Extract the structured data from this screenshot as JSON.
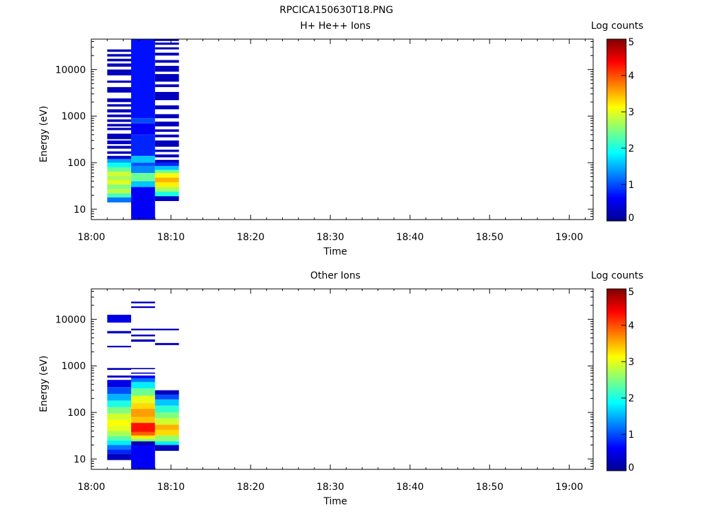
{
  "figure_title": "RPCICA150630T18.PNG",
  "chart_data": [
    {
      "type": "heatmap",
      "title": "H+ He++ Ions",
      "xlabel": "Time",
      "ylabel": "Energy (eV)",
      "x_ticks": [
        "18:00",
        "18:10",
        "18:20",
        "18:30",
        "18:40",
        "18:50",
        "19:00"
      ],
      "x_range": [
        "18:00",
        "19:03"
      ],
      "y_scale": "log",
      "y_ticks": [
        10,
        100,
        1000,
        10000
      ],
      "y_tick_labels": [
        "10",
        "100",
        "1000",
        "10000"
      ],
      "y_range": [
        6,
        45000
      ],
      "colorbar": {
        "label": "Log counts",
        "range": [
          0,
          5
        ],
        "ticks": [
          "0",
          "1",
          "2",
          "3",
          "4",
          "5"
        ]
      },
      "columns": [
        {
          "start": "18:02",
          "end": "18:05",
          "bins": [
            {
              "e_lo": 14,
              "e_hi": 18,
              "log_counts": 1.2
            },
            {
              "e_lo": 18,
              "e_hi": 22,
              "log_counts": 2.2
            },
            {
              "e_lo": 22,
              "e_hi": 27,
              "log_counts": 2.8
            },
            {
              "e_lo": 27,
              "e_hi": 34,
              "log_counts": 2.5
            },
            {
              "e_lo": 34,
              "e_hi": 42,
              "log_counts": 3.0
            },
            {
              "e_lo": 42,
              "e_hi": 52,
              "log_counts": 2.7
            },
            {
              "e_lo": 52,
              "e_hi": 64,
              "log_counts": 2.9
            },
            {
              "e_lo": 64,
              "e_hi": 80,
              "log_counts": 2.4
            },
            {
              "e_lo": 80,
              "e_hi": 100,
              "log_counts": 1.9
            },
            {
              "e_lo": 100,
              "e_hi": 120,
              "log_counts": 1.4
            },
            {
              "e_lo": 120,
              "e_hi": 140,
              "log_counts": 0.4
            },
            {
              "e_lo": 155,
              "e_hi": 175,
              "log_counts": 0.3
            },
            {
              "e_lo": 200,
              "e_hi": 230,
              "log_counts": 0.3
            },
            {
              "e_lo": 250,
              "e_hi": 300,
              "log_counts": 0.4
            },
            {
              "e_lo": 320,
              "e_hi": 420,
              "log_counts": 0.3
            },
            {
              "e_lo": 500,
              "e_hi": 560,
              "log_counts": 0.3
            },
            {
              "e_lo": 600,
              "e_hi": 680,
              "log_counts": 0.3
            },
            {
              "e_lo": 750,
              "e_hi": 850,
              "log_counts": 0.3
            },
            {
              "e_lo": 950,
              "e_hi": 1080,
              "log_counts": 0.3
            },
            {
              "e_lo": 1200,
              "e_hi": 1400,
              "log_counts": 0.3
            },
            {
              "e_lo": 1600,
              "e_hi": 1800,
              "log_counts": 0.3
            },
            {
              "e_lo": 2000,
              "e_hi": 2400,
              "log_counts": 0.3
            },
            {
              "e_lo": 3200,
              "e_hi": 4200,
              "log_counts": 0.3
            },
            {
              "e_lo": 5200,
              "e_hi": 5800,
              "log_counts": 0.3
            },
            {
              "e_lo": 7500,
              "e_hi": 10000,
              "log_counts": 0.3
            },
            {
              "e_lo": 11500,
              "e_hi": 13500,
              "log_counts": 0.3
            },
            {
              "e_lo": 15000,
              "e_hi": 17000,
              "log_counts": 0.3
            },
            {
              "e_lo": 19000,
              "e_hi": 21500,
              "log_counts": 0.3
            },
            {
              "e_lo": 24000,
              "e_hi": 27000,
              "log_counts": 0.3
            }
          ]
        },
        {
          "start": "18:05",
          "end": "18:08",
          "bins": [
            {
              "e_lo": 6,
              "e_hi": 30,
              "log_counts": 0.6
            },
            {
              "e_lo": 30,
              "e_hi": 40,
              "log_counts": 1.6
            },
            {
              "e_lo": 40,
              "e_hi": 60,
              "log_counts": 2.4
            },
            {
              "e_lo": 60,
              "e_hi": 85,
              "log_counts": 1.3
            },
            {
              "e_lo": 85,
              "e_hi": 100,
              "log_counts": 1.0
            },
            {
              "e_lo": 100,
              "e_hi": 140,
              "log_counts": 1.6
            },
            {
              "e_lo": 140,
              "e_hi": 400,
              "log_counts": 0.8
            },
            {
              "e_lo": 400,
              "e_hi": 700,
              "log_counts": 0.6
            },
            {
              "e_lo": 700,
              "e_hi": 900,
              "log_counts": 1.0
            },
            {
              "e_lo": 900,
              "e_hi": 45000,
              "log_counts": 0.7
            }
          ]
        },
        {
          "start": "18:08",
          "end": "18:11",
          "bins": [
            {
              "e_lo": 15,
              "e_hi": 19,
              "log_counts": 0.3
            },
            {
              "e_lo": 19,
              "e_hi": 24,
              "log_counts": 2.0
            },
            {
              "e_lo": 24,
              "e_hi": 30,
              "log_counts": 2.7
            },
            {
              "e_lo": 30,
              "e_hi": 38,
              "log_counts": 3.2
            },
            {
              "e_lo": 38,
              "e_hi": 48,
              "log_counts": 3.5
            },
            {
              "e_lo": 48,
              "e_hi": 60,
              "log_counts": 3.1
            },
            {
              "e_lo": 60,
              "e_hi": 70,
              "log_counts": 2.4
            },
            {
              "e_lo": 70,
              "e_hi": 85,
              "log_counts": 1.6
            },
            {
              "e_lo": 85,
              "e_hi": 100,
              "log_counts": 0.8
            },
            {
              "e_lo": 100,
              "e_hi": 115,
              "log_counts": 0.3
            },
            {
              "e_lo": 130,
              "e_hi": 150,
              "log_counts": 0.3
            },
            {
              "e_lo": 170,
              "e_hi": 190,
              "log_counts": 0.3
            },
            {
              "e_lo": 220,
              "e_hi": 300,
              "log_counts": 0.3
            },
            {
              "e_lo": 350,
              "e_hi": 400,
              "log_counts": 0.3
            },
            {
              "e_lo": 460,
              "e_hi": 520,
              "log_counts": 0.3
            },
            {
              "e_lo": 600,
              "e_hi": 760,
              "log_counts": 0.3
            },
            {
              "e_lo": 900,
              "e_hi": 1100,
              "log_counts": 0.3
            },
            {
              "e_lo": 1400,
              "e_hi": 1700,
              "log_counts": 0.3
            },
            {
              "e_lo": 2200,
              "e_hi": 3300,
              "log_counts": 0.3
            },
            {
              "e_lo": 4200,
              "e_hi": 4800,
              "log_counts": 0.3
            },
            {
              "e_lo": 5500,
              "e_hi": 8000,
              "log_counts": 0.3
            },
            {
              "e_lo": 9000,
              "e_hi": 12000,
              "log_counts": 0.3
            },
            {
              "e_lo": 14000,
              "e_hi": 16000,
              "log_counts": 0.3
            },
            {
              "e_lo": 20000,
              "e_hi": 23000,
              "log_counts": 0.3
            },
            {
              "e_lo": 27000,
              "e_hi": 30000,
              "log_counts": 0.3
            },
            {
              "e_lo": 34000,
              "e_hi": 38000,
              "log_counts": 0.3
            },
            {
              "e_lo": 41000,
              "e_hi": 45000,
              "log_counts": 0.3
            }
          ]
        }
      ]
    },
    {
      "type": "heatmap",
      "title": "Other Ions",
      "xlabel": "Time",
      "ylabel": "Energy (eV)",
      "x_ticks": [
        "18:00",
        "18:10",
        "18:20",
        "18:30",
        "18:40",
        "18:50",
        "19:00"
      ],
      "x_range": [
        "18:00",
        "19:03"
      ],
      "y_scale": "log",
      "y_ticks": [
        10,
        100,
        1000,
        10000
      ],
      "y_tick_labels": [
        "10",
        "100",
        "1000",
        "10000"
      ],
      "y_range": [
        6,
        45000
      ],
      "colorbar": {
        "label": "Log counts",
        "range": [
          0,
          5
        ],
        "ticks": [
          "0",
          "1",
          "2",
          "3",
          "4",
          "5"
        ]
      },
      "columns": [
        {
          "start": "18:02",
          "end": "18:05",
          "bins": [
            {
              "e_lo": 9.5,
              "e_hi": 13,
              "log_counts": 0.3
            },
            {
              "e_lo": 13,
              "e_hi": 16,
              "log_counts": 0.8
            },
            {
              "e_lo": 16,
              "e_hi": 20,
              "log_counts": 1.2
            },
            {
              "e_lo": 20,
              "e_hi": 25,
              "log_counts": 1.8
            },
            {
              "e_lo": 25,
              "e_hi": 31,
              "log_counts": 2.3
            },
            {
              "e_lo": 31,
              "e_hi": 40,
              "log_counts": 2.7
            },
            {
              "e_lo": 40,
              "e_hi": 52,
              "log_counts": 3.0
            },
            {
              "e_lo": 52,
              "e_hi": 70,
              "log_counts": 3.1
            },
            {
              "e_lo": 70,
              "e_hi": 95,
              "log_counts": 2.9
            },
            {
              "e_lo": 95,
              "e_hi": 130,
              "log_counts": 2.5
            },
            {
              "e_lo": 130,
              "e_hi": 180,
              "log_counts": 2.0
            },
            {
              "e_lo": 180,
              "e_hi": 250,
              "log_counts": 1.5
            },
            {
              "e_lo": 250,
              "e_hi": 350,
              "log_counts": 1.0
            },
            {
              "e_lo": 350,
              "e_hi": 500,
              "log_counts": 0.5
            },
            {
              "e_lo": 560,
              "e_hi": 620,
              "log_counts": 0.3
            },
            {
              "e_lo": 820,
              "e_hi": 900,
              "log_counts": 0.3
            },
            {
              "e_lo": 2500,
              "e_hi": 2700,
              "log_counts": 0.3
            },
            {
              "e_lo": 5000,
              "e_hi": 5600,
              "log_counts": 0.3
            },
            {
              "e_lo": 8500,
              "e_hi": 12500,
              "log_counts": 0.5
            }
          ]
        },
        {
          "start": "18:05",
          "end": "18:08",
          "bins": [
            {
              "e_lo": 6,
              "e_hi": 20,
              "log_counts": 0.6
            },
            {
              "e_lo": 20,
              "e_hi": 24,
              "log_counts": 0.2
            },
            {
              "e_lo": 24,
              "e_hi": 27,
              "log_counts": 2.5
            },
            {
              "e_lo": 27,
              "e_hi": 32,
              "log_counts": 3.2
            },
            {
              "e_lo": 32,
              "e_hi": 38,
              "log_counts": 3.9
            },
            {
              "e_lo": 38,
              "e_hi": 60,
              "log_counts": 4.3
            },
            {
              "e_lo": 60,
              "e_hi": 80,
              "log_counts": 3.4
            },
            {
              "e_lo": 80,
              "e_hi": 120,
              "log_counts": 3.6
            },
            {
              "e_lo": 120,
              "e_hi": 160,
              "log_counts": 3.3
            },
            {
              "e_lo": 160,
              "e_hi": 230,
              "log_counts": 3.0
            },
            {
              "e_lo": 230,
              "e_hi": 330,
              "log_counts": 2.4
            },
            {
              "e_lo": 330,
              "e_hi": 450,
              "log_counts": 1.8
            },
            {
              "e_lo": 450,
              "e_hi": 540,
              "log_counts": 1.2
            },
            {
              "e_lo": 540,
              "e_hi": 620,
              "log_counts": 0.6
            },
            {
              "e_lo": 680,
              "e_hi": 720,
              "log_counts": 0.3
            },
            {
              "e_lo": 850,
              "e_hi": 900,
              "log_counts": 0.3
            },
            {
              "e_lo": 3300,
              "e_hi": 3700,
              "log_counts": 0.3
            },
            {
              "e_lo": 4300,
              "e_hi": 4700,
              "log_counts": 0.3
            },
            {
              "e_lo": 5800,
              "e_hi": 6300,
              "log_counts": 0.3
            },
            {
              "e_lo": 17500,
              "e_hi": 19000,
              "log_counts": 0.3
            },
            {
              "e_lo": 22000,
              "e_hi": 24000,
              "log_counts": 0.3
            }
          ]
        },
        {
          "start": "18:08",
          "end": "18:11",
          "bins": [
            {
              "e_lo": 15,
              "e_hi": 20,
              "log_counts": 0.3
            },
            {
              "e_lo": 20,
              "e_hi": 24,
              "log_counts": 1.8
            },
            {
              "e_lo": 24,
              "e_hi": 32,
              "log_counts": 2.6
            },
            {
              "e_lo": 32,
              "e_hi": 42,
              "log_counts": 3.3
            },
            {
              "e_lo": 42,
              "e_hi": 55,
              "log_counts": 3.5
            },
            {
              "e_lo": 55,
              "e_hi": 75,
              "log_counts": 2.9
            },
            {
              "e_lo": 75,
              "e_hi": 100,
              "log_counts": 2.5
            },
            {
              "e_lo": 100,
              "e_hi": 140,
              "log_counts": 2.1
            },
            {
              "e_lo": 140,
              "e_hi": 190,
              "log_counts": 1.6
            },
            {
              "e_lo": 190,
              "e_hi": 240,
              "log_counts": 1.0
            },
            {
              "e_lo": 240,
              "e_hi": 300,
              "log_counts": 0.3
            },
            {
              "e_lo": 2800,
              "e_hi": 3100,
              "log_counts": 0.3
            },
            {
              "e_lo": 5800,
              "e_hi": 6300,
              "log_counts": 0.3
            }
          ]
        }
      ]
    }
  ]
}
